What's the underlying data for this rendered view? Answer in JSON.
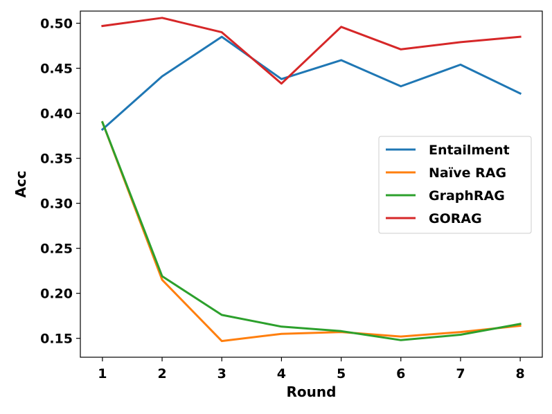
{
  "chart_data": {
    "type": "line",
    "xlabel": "Round",
    "ylabel": "Acc",
    "x": [
      1,
      2,
      3,
      4,
      5,
      6,
      7,
      8
    ],
    "xlim": [
      0.63,
      8.37
    ],
    "ylim": [
      0.129,
      0.5135
    ],
    "yticks": [
      0.15,
      0.2,
      0.25,
      0.3,
      0.35,
      0.4,
      0.45,
      0.5
    ],
    "ytick_labels": [
      "0.15",
      "0.20",
      "0.25",
      "0.30",
      "0.35",
      "0.40",
      "0.45",
      "0.50"
    ],
    "xtick_labels": [
      "1",
      "2",
      "3",
      "4",
      "5",
      "6",
      "7",
      "8"
    ],
    "grid": false,
    "legend_position": "center-right",
    "series": [
      {
        "name": "Entailment",
        "color": "#1f77b4",
        "values": [
          0.382,
          0.441,
          0.485,
          0.438,
          0.459,
          0.43,
          0.454,
          0.422
        ]
      },
      {
        "name": "Naïve RAG",
        "color": "#ff7f0e",
        "values": [
          0.39,
          0.215,
          0.147,
          0.155,
          0.157,
          0.152,
          0.157,
          0.164
        ]
      },
      {
        "name": "GraphRAG",
        "color": "#2ca02c",
        "values": [
          0.39,
          0.219,
          0.176,
          0.163,
          0.158,
          0.148,
          0.154,
          0.166
        ]
      },
      {
        "name": "GORAG",
        "color": "#d62728",
        "values": [
          0.497,
          0.506,
          0.49,
          0.433,
          0.496,
          0.471,
          0.479,
          0.485
        ]
      }
    ]
  }
}
